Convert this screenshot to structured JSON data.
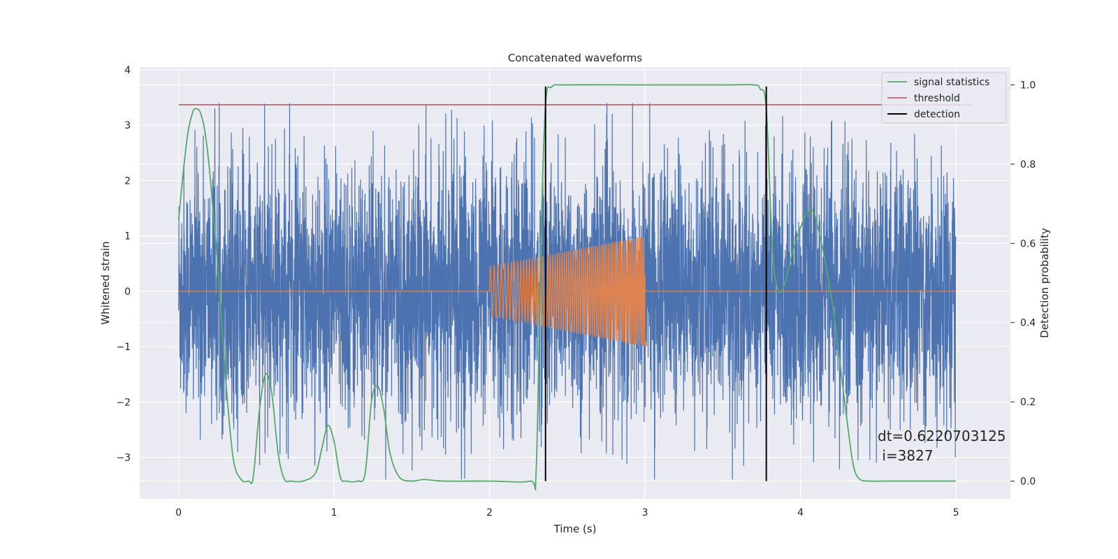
{
  "chart_data": {
    "type": "line",
    "title": "Concatenated waveforms",
    "xlabel": "Time (s)",
    "ylabel": "Whitened strain",
    "y2label": "Detection probability",
    "xlim": [
      -0.25,
      5.35
    ],
    "ylim": [
      -3.75,
      4.05
    ],
    "y2lim": [
      -0.045,
      1.045
    ],
    "x_ticks": [
      0,
      1,
      2,
      3,
      4,
      5
    ],
    "y_ticks": [
      -3,
      -2,
      -1,
      0,
      1,
      2,
      3,
      4
    ],
    "y2_ticks": [
      "0.0",
      "0.2",
      "0.4",
      "0.6",
      "0.8",
      "1.0"
    ],
    "grid": true,
    "legend_position": "top-right",
    "colors": {
      "background": "#eaeaf2",
      "grid": "#ffffff",
      "noise": "#4c72b0",
      "waveform": "#dd8452",
      "signal_statistics": "#55a868",
      "threshold": "#c44e52",
      "detection": "#000000"
    },
    "series": [
      {
        "name": "",
        "axis": "left",
        "description_role": "noisy strain",
        "x_range": [
          0,
          5
        ],
        "amplitude_envelope": 2.3,
        "spike_extremes": [
          -3.4,
          3.4
        ]
      },
      {
        "name": "",
        "axis": "left",
        "description_role": "injected chirp",
        "x_range": [
          2.0,
          3.0
        ],
        "amplitude_start": 0.45,
        "amplitude_end": 1.0,
        "zero_elsewhere": true
      },
      {
        "name": "signal statistics",
        "axis": "right",
        "x": [
          0.0,
          0.03,
          0.06,
          0.09,
          0.11,
          0.14,
          0.17,
          0.2,
          0.25,
          0.3,
          0.35,
          0.4,
          0.45,
          0.48,
          0.52,
          0.56,
          0.6,
          0.64,
          0.68,
          0.72,
          0.8,
          0.88,
          0.92,
          0.96,
          1.0,
          1.04,
          1.08,
          1.15,
          1.2,
          1.24,
          1.28,
          1.32,
          1.36,
          1.42,
          1.5,
          1.58,
          1.7,
          2.0,
          2.26,
          2.3,
          2.33,
          2.36,
          2.4,
          2.5,
          3.0,
          3.5,
          3.7,
          3.74,
          3.78,
          3.82,
          3.86,
          3.9,
          3.95,
          4.0,
          4.05,
          4.1,
          4.2,
          4.3,
          4.34,
          4.38,
          4.45,
          4.6,
          5.0
        ],
        "y": [
          0.66,
          0.78,
          0.88,
          0.93,
          0.94,
          0.93,
          0.88,
          0.78,
          0.55,
          0.27,
          0.06,
          0.005,
          0.0,
          0.01,
          0.18,
          0.27,
          0.22,
          0.07,
          0.005,
          0.0,
          0.0,
          0.02,
          0.08,
          0.14,
          0.1,
          0.01,
          0.0,
          0.0,
          0.02,
          0.2,
          0.24,
          0.18,
          0.07,
          0.01,
          0.0,
          0.004,
          0.0,
          0.0,
          0.0,
          0.03,
          0.6,
          0.95,
          0.995,
          1.0,
          1.0,
          1.0,
          1.0,
          0.99,
          0.94,
          0.58,
          0.48,
          0.5,
          0.58,
          0.64,
          0.68,
          0.66,
          0.46,
          0.15,
          0.04,
          0.005,
          0.0,
          0.0,
          0.0
        ]
      },
      {
        "name": "threshold",
        "axis": "right",
        "x": [
          0,
          5.1
        ],
        "y": [
          0.95,
          0.95
        ]
      },
      {
        "name": "detection",
        "axis": "left",
        "x": [
          2.36,
          3.78
        ],
        "y_range": [
          -3.43,
          3.7
        ]
      }
    ],
    "annotations": [
      {
        "text": "dt=0.6220703125",
        "x": 4.5,
        "y": -2.6
      },
      {
        "text": " i=3827",
        "x": 4.5,
        "y": -2.95
      }
    ]
  }
}
